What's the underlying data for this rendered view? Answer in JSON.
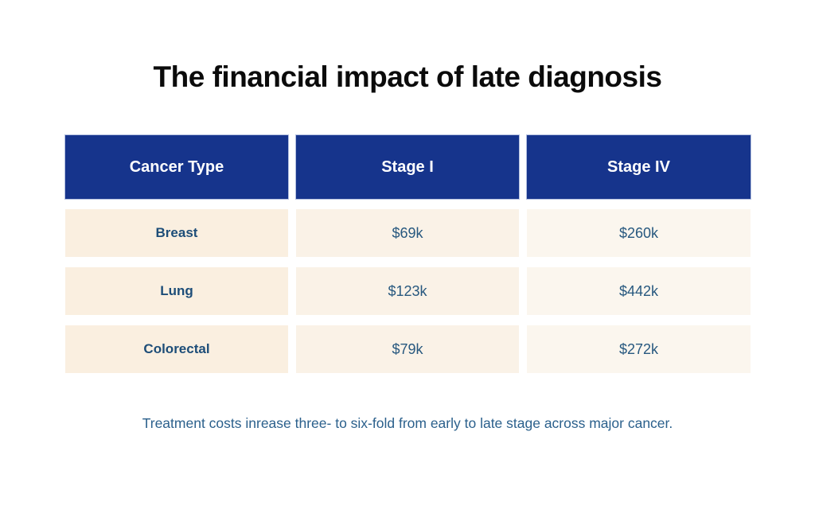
{
  "title": "The financial impact of late diagnosis",
  "table": {
    "columns": [
      "Cancer Type",
      "Stage I",
      "Stage IV"
    ],
    "rows": [
      {
        "type": "Breast",
        "stage1": "$69k",
        "stage4": "$260k"
      },
      {
        "type": "Lung",
        "stage1": "$123k",
        "stage4": "$442k"
      },
      {
        "type": "Colorectal",
        "stage1": "$79k",
        "stage4": "$272k"
      }
    ]
  },
  "footnote": "Treatment costs inrease three- to six-fold from early to late stage across major cancer.",
  "colors": {
    "header_bg": "#16348c",
    "header_text": "#ffffff",
    "row_bg_col1": "#faefe0",
    "row_bg_col2": "#faf2e7",
    "row_bg_col3": "#fbf6ee",
    "cell_text": "#1d4d78",
    "value_text": "#27587f",
    "footnote_text": "#2b608c",
    "title_text": "#0b0b0b",
    "page_bg": "#ffffff"
  },
  "chart_data": {
    "type": "table",
    "title": "The financial impact of late diagnosis",
    "columns": [
      "Cancer Type",
      "Stage I",
      "Stage IV"
    ],
    "rows": [
      [
        "Breast",
        "$69k",
        "$260k"
      ],
      [
        "Lung",
        "$123k",
        "$442k"
      ],
      [
        "Colorectal",
        "$79k",
        "$272k"
      ]
    ],
    "values_usd_thousands": {
      "Breast": {
        "stage_I": 69,
        "stage_IV": 260
      },
      "Lung": {
        "stage_I": 123,
        "stage_IV": 442
      },
      "Colorectal": {
        "stage_I": 79,
        "stage_IV": 272
      }
    },
    "caption": "Treatment costs inrease three- to six-fold from early to late stage across major cancer."
  }
}
